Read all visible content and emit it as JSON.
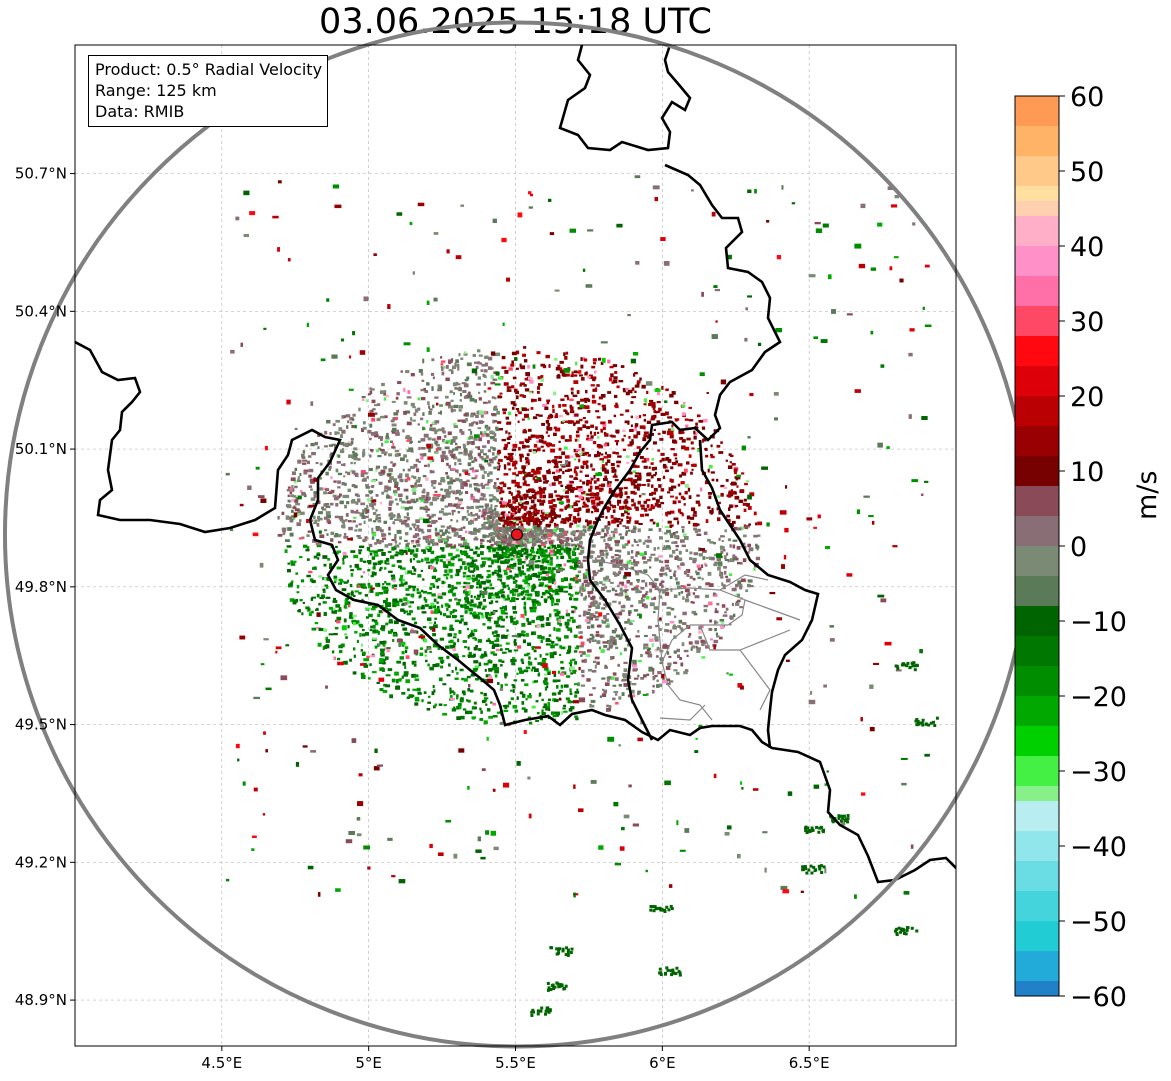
{
  "title": "03.06.2025 15:18 UTC",
  "info": {
    "product": "Product: 0.5° Radial Velocity",
    "range": "Range: 125 km",
    "source": "Data: RMIB"
  },
  "map": {
    "lon_range": [
      4.0,
      7.0
    ],
    "lat_range": [
      48.8,
      50.98
    ],
    "lon_ticks": [
      "4.5°E",
      "5°E",
      "5.5°E",
      "6°E",
      "6.5°E"
    ],
    "lat_ticks": [
      "50.7°N",
      "50.4°N",
      "50.1°N",
      "49.8°N",
      "49.5°N",
      "49.2°N",
      "48.9°N"
    ],
    "grid": true,
    "radar_site": {
      "lon": 5.505,
      "lat": 49.914,
      "color": "#e8141e"
    },
    "range_ring_km": 125,
    "range_ring_color": "#808080",
    "border_color": "#000000",
    "region_border_color": "#888888"
  },
  "colorbar": {
    "label": "m/s",
    "min": -60,
    "max": 60,
    "ticks": [
      "60",
      "50",
      "40",
      "30",
      "20",
      "10",
      "0",
      "−10",
      "−20",
      "−30",
      "−40",
      "−50",
      "−60"
    ],
    "tick_values": [
      60,
      50,
      40,
      30,
      20,
      10,
      0,
      -10,
      -20,
      -30,
      -40,
      -50,
      -60
    ],
    "colors": [
      {
        "from": 56,
        "to": 60,
        "color": "#ff9a55"
      },
      {
        "from": 52,
        "to": 56,
        "color": "#ffb366"
      },
      {
        "from": 48,
        "to": 52,
        "color": "#ffc98a"
      },
      {
        "from": 46,
        "to": 48,
        "color": "#ffe0a0"
      },
      {
        "from": 44,
        "to": 46,
        "color": "#ffd0b0"
      },
      {
        "from": 40,
        "to": 44,
        "color": "#ffb0c8"
      },
      {
        "from": 36,
        "to": 40,
        "color": "#ff90c8"
      },
      {
        "from": 32,
        "to": 36,
        "color": "#ff70a8"
      },
      {
        "from": 28,
        "to": 32,
        "color": "#ff4866"
      },
      {
        "from": 24,
        "to": 28,
        "color": "#ff0810"
      },
      {
        "from": 20,
        "to": 24,
        "color": "#dd0008"
      },
      {
        "from": 16,
        "to": 20,
        "color": "#bb0004"
      },
      {
        "from": 12,
        "to": 16,
        "color": "#990002"
      },
      {
        "from": 8,
        "to": 12,
        "color": "#770000"
      },
      {
        "from": 4,
        "to": 8,
        "color": "#8a4a58"
      },
      {
        "from": 0,
        "to": 4,
        "color": "#8a6e76"
      },
      {
        "from": -4,
        "to": 0,
        "color": "#7a8a74"
      },
      {
        "from": -8,
        "to": -4,
        "color": "#5a7a58"
      },
      {
        "from": -12,
        "to": -8,
        "color": "#006400"
      },
      {
        "from": -16,
        "to": -12,
        "color": "#007800"
      },
      {
        "from": -20,
        "to": -16,
        "color": "#008e00"
      },
      {
        "from": -24,
        "to": -20,
        "color": "#00a800"
      },
      {
        "from": -28,
        "to": -24,
        "color": "#00d000"
      },
      {
        "from": -32,
        "to": -28,
        "color": "#44f044"
      },
      {
        "from": -34,
        "to": -32,
        "color": "#88f088"
      },
      {
        "from": -38,
        "to": -34,
        "color": "#b8eef0"
      },
      {
        "from": -42,
        "to": -38,
        "color": "#90e6ea"
      },
      {
        "from": -46,
        "to": -42,
        "color": "#6adce4"
      },
      {
        "from": -50,
        "to": -46,
        "color": "#44d4dc"
      },
      {
        "from": -54,
        "to": -50,
        "color": "#22ccd4"
      },
      {
        "from": -58,
        "to": -54,
        "color": "#22aad8"
      },
      {
        "from": -60,
        "to": -58,
        "color": "#2080c8"
      }
    ]
  }
}
